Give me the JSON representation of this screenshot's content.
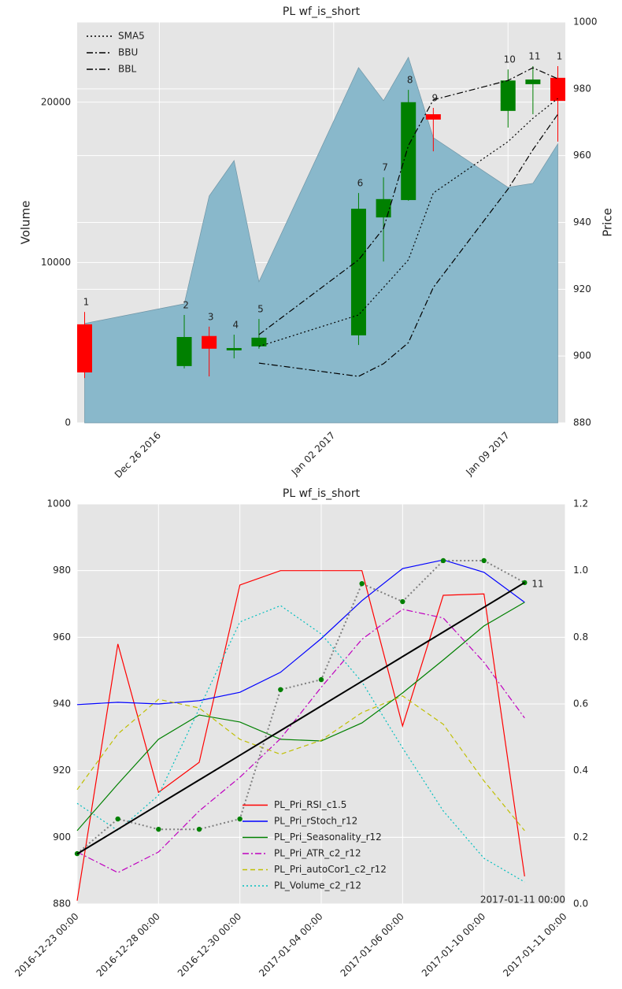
{
  "chart_data": [
    {
      "type": "candlestick",
      "title": "PL wf_is_short",
      "ylabel": "Volume",
      "y2label": "Price",
      "x": [
        "2016-12-23",
        "2016-12-27",
        "2016-12-28",
        "2016-12-29",
        "2016-12-30",
        "2017-01-03",
        "2017-01-04",
        "2017-01-05",
        "2017-01-06",
        "2017-01-09",
        "2017-01-10",
        "2017-01-11"
      ],
      "xticks": [
        {
          "value": "2016-12-26",
          "label": "Dec 26 2016"
        },
        {
          "value": "2017-01-02",
          "label": "Jan 02 2017"
        },
        {
          "value": "2017-01-09",
          "label": "Jan 09 2017"
        }
      ],
      "ylim": [
        0,
        25000
      ],
      "yticks": [
        0,
        10000,
        20000
      ],
      "y2lim": [
        880,
        1000
      ],
      "y2ticks": [
        880,
        900,
        920,
        940,
        960,
        980,
        1000
      ],
      "grid": true,
      "legend": "upper left",
      "volume": {
        "color": "#89b8cb",
        "values": [
          6200,
          7420,
          14150,
          16360,
          8800,
          22160,
          20100,
          22800,
          17790,
          14690,
          14940,
          17400
        ]
      },
      "candles": {
        "up_color": "#008000",
        "down_color": "#ff0000",
        "open": [
          909.5,
          897.0,
          906.0,
          901.7,
          902.9,
          906.2,
          941.5,
          946.7,
          972.4,
          973.4,
          981.4,
          983.3
        ],
        "high": [
          913.2,
          912.3,
          908.8,
          906.4,
          911.1,
          948.8,
          953.5,
          979.7,
          974.3,
          985.8,
          986.8,
          986.8
        ],
        "low": [
          893.4,
          896.3,
          893.9,
          899.3,
          902.2,
          903.3,
          928.3,
          946.5,
          961.3,
          968.4,
          972.4,
          964.2
        ],
        "close": [
          895.1,
          905.7,
          902.2,
          902.4,
          905.5,
          944.1,
          947.0,
          976.0,
          970.8,
          982.5,
          982.8,
          976.4
        ],
        "labels": [
          "1",
          "2",
          "3",
          "4",
          "5",
          "6",
          "7",
          "8",
          "9",
          "10",
          "11",
          "1"
        ]
      },
      "series": [
        {
          "name": "SMA5",
          "color": "#000000",
          "style": "dotted",
          "axis": "y2",
          "values": [
            null,
            null,
            null,
            null,
            902.9,
            912.3,
            920.5,
            928.8,
            948.8,
            964.2,
            971.2,
            977.1
          ]
        },
        {
          "name": "BBU",
          "color": "#000000",
          "style": "dashdot",
          "axis": "y2",
          "values": [
            null,
            null,
            null,
            null,
            906.4,
            928.8,
            938.2,
            963.0,
            976.7,
            982.5,
            986.3,
            983.0
          ]
        },
        {
          "name": "BBL",
          "color": "#000000",
          "style": "dashdot",
          "axis": "y2",
          "values": [
            null,
            null,
            null,
            null,
            897.9,
            893.9,
            897.7,
            904.0,
            920.5,
            950.0,
            961.8,
            972.4
          ]
        }
      ]
    },
    {
      "type": "line",
      "title": "PL wf_is_short",
      "x": [
        0,
        1,
        2,
        3,
        4,
        5,
        6,
        7,
        8,
        9,
        10,
        11
      ],
      "xlim": [
        0,
        12
      ],
      "xticks": [
        {
          "value": 0,
          "label": "2016-12-23 00:00"
        },
        {
          "value": 2,
          "label": "2016-12-28 00:00"
        },
        {
          "value": 4,
          "label": "2016-12-30 00:00"
        },
        {
          "value": 6,
          "label": "2017-01-04 00:00"
        },
        {
          "value": 8,
          "label": "2017-01-06 00:00"
        },
        {
          "value": 10,
          "label": "2017-01-10 00:00"
        },
        {
          "value": 12,
          "label": "2017-01-11 00:00"
        }
      ],
      "ylim": [
        880,
        1000
      ],
      "yticks": [
        880,
        900,
        920,
        940,
        960,
        980,
        1000
      ],
      "y2lim": [
        0,
        1.2
      ],
      "y2ticks": [
        {
          "value": 0,
          "label": "0.0"
        },
        0.2,
        0.4,
        0.6,
        0.8,
        {
          "value": 1,
          "label": "1.0"
        },
        1.2
      ],
      "grid": true,
      "legend": "lower center",
      "point_label": "11",
      "corner_label": "2017-01-11 00:00",
      "series": [
        {
          "name": "PL_Pri_RSI_c1.5",
          "color": "#ff0000",
          "style": "solid",
          "axis": "y2",
          "values": [
            0.01,
            0.78,
            0.335,
            0.425,
            0.957,
            1.0,
            1.0,
            1.0,
            0.534,
            0.926,
            0.93,
            0.083
          ]
        },
        {
          "name": "PL_Pri_rStoch_r12",
          "color": "#0000ff",
          "style": "solid",
          "axis": "y2",
          "values": [
            0.598,
            0.605,
            0.6,
            0.61,
            0.635,
            0.695,
            0.796,
            0.91,
            1.006,
            1.032,
            0.995,
            0.905
          ]
        },
        {
          "name": "PL_Pri_Seasonality_r12",
          "color": "#008000",
          "style": "solid",
          "axis": "y2",
          "values": [
            0.22,
            0.36,
            0.494,
            0.567,
            0.546,
            0.494,
            0.489,
            0.543,
            0.633,
            0.732,
            0.834,
            0.905
          ]
        },
        {
          "name": "PL_Pri_ATR_c2_r12",
          "color": "#bf00bf",
          "style": "dashdot",
          "axis": "y2",
          "values": [
            0.156,
            0.094,
            0.156,
            0.279,
            0.38,
            0.496,
            0.65,
            0.794,
            0.884,
            0.858,
            0.725,
            0.558
          ]
        },
        {
          "name": "PL_Pri_autoCor1_c2_r12",
          "color": "#bfbf00",
          "style": "dashed",
          "axis": "y2",
          "values": [
            0.343,
            0.51,
            0.614,
            0.588,
            0.494,
            0.449,
            0.491,
            0.574,
            0.624,
            0.539,
            0.369,
            0.22
          ]
        },
        {
          "name": "PL_Volume_c2_r12",
          "color": "#00bfbf",
          "style": "dotted",
          "axis": "y2",
          "values": [
            0.302,
            0.22,
            0.326,
            0.586,
            0.846,
            0.895,
            0.81,
            0.666,
            0.468,
            0.279,
            0.137,
            0.066
          ]
        },
        {
          "color": "#808080",
          "style": "dotted",
          "width": 2,
          "markers": "#008000",
          "values": [
            895.1,
            905.5,
            902.4,
            902.4,
            905.5,
            944.3,
            947.3,
            976.1,
            970.7,
            983.0,
            983.0,
            976.4
          ]
        },
        {
          "color": "#000000",
          "style": "solid",
          "width": 2,
          "values": [
            895.0,
            902.4,
            909.8,
            917.2,
            924.6,
            932.0,
            939.4,
            946.8,
            954.2,
            961.6,
            969.0,
            976.4
          ]
        }
      ]
    }
  ]
}
